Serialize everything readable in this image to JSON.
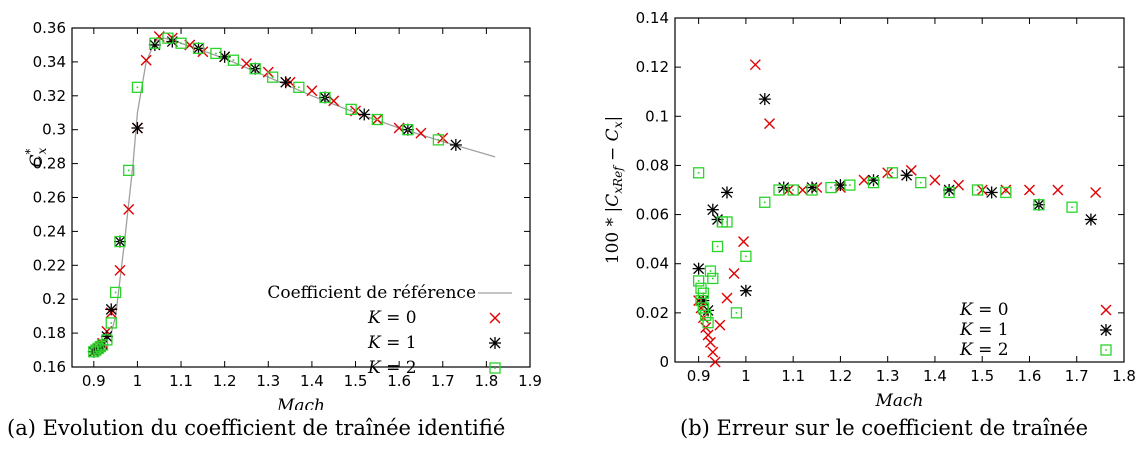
{
  "chart_data": [
    {
      "type": "scatter",
      "caption": "(a) Evolution du coefficient de traînée identifié",
      "xlabel": "Mach",
      "ylabel": "C*x",
      "xlim": [
        0.85,
        1.9
      ],
      "ylim": [
        0.16,
        0.36
      ],
      "xticks": [
        "0.9",
        "1",
        "1.1",
        "1.2",
        "1.3",
        "1.4",
        "1.5",
        "1.6",
        "1.7",
        "1.8",
        "1.9"
      ],
      "yticks": [
        "0.16",
        "0.18",
        "0.2",
        "0.22",
        "0.24",
        "0.26",
        "0.28",
        "0.3",
        "0.32",
        "0.34",
        "0.36"
      ],
      "legend_position": "bottom-right",
      "grid": false,
      "reference_line": {
        "name": "Coefficient de référence",
        "color": "#a0a0a0",
        "x": [
          0.9,
          0.92,
          0.94,
          0.95,
          0.97,
          0.99,
          1.0,
          1.02,
          1.04,
          1.06,
          1.08,
          1.1,
          1.2,
          1.3,
          1.4,
          1.5,
          1.6,
          1.7,
          1.82
        ],
        "y": [
          0.168,
          0.172,
          0.18,
          0.19,
          0.233,
          0.28,
          0.31,
          0.34,
          0.352,
          0.354,
          0.353,
          0.351,
          0.342,
          0.331,
          0.32,
          0.31,
          0.301,
          0.293,
          0.284
        ]
      },
      "series": [
        {
          "name": "K = 0",
          "marker": "x",
          "color": "#e00000",
          "x": [
            0.9,
            0.905,
            0.91,
            0.915,
            0.92,
            0.93,
            0.94,
            0.96,
            0.98,
            1.0,
            1.02,
            1.05,
            1.08,
            1.12,
            1.15,
            1.2,
            1.25,
            1.3,
            1.35,
            1.4,
            1.45,
            1.5,
            1.55,
            1.6,
            1.65,
            1.7
          ],
          "y": [
            0.169,
            0.17,
            0.171,
            0.172,
            0.174,
            0.181,
            0.192,
            0.217,
            0.253,
            0.301,
            0.341,
            0.355,
            0.354,
            0.35,
            0.346,
            0.343,
            0.339,
            0.334,
            0.328,
            0.323,
            0.317,
            0.311,
            0.306,
            0.301,
            0.298,
            0.295
          ]
        },
        {
          "name": "K = 1",
          "marker": "asterisk",
          "color": "#000000",
          "x": [
            0.9,
            0.91,
            0.92,
            0.93,
            0.94,
            0.96,
            1.0,
            1.04,
            1.08,
            1.14,
            1.2,
            1.27,
            1.34,
            1.43,
            1.52,
            1.62,
            1.73
          ],
          "y": [
            0.169,
            0.171,
            0.173,
            0.178,
            0.194,
            0.234,
            0.301,
            0.35,
            0.352,
            0.348,
            0.343,
            0.336,
            0.328,
            0.319,
            0.309,
            0.3,
            0.291
          ]
        },
        {
          "name": "K = 2",
          "marker": "square",
          "color": "#2ad42a",
          "x": [
            0.9,
            0.905,
            0.91,
            0.915,
            0.92,
            0.93,
            0.94,
            0.95,
            0.96,
            0.98,
            1.0,
            1.04,
            1.07,
            1.1,
            1.14,
            1.18,
            1.22,
            1.27,
            1.31,
            1.37,
            1.43,
            1.49,
            1.55,
            1.62,
            1.69
          ],
          "y": [
            0.169,
            0.17,
            0.171,
            0.172,
            0.173,
            0.176,
            0.186,
            0.204,
            0.234,
            0.276,
            0.325,
            0.351,
            0.354,
            0.351,
            0.348,
            0.345,
            0.341,
            0.336,
            0.331,
            0.325,
            0.319,
            0.312,
            0.306,
            0.3,
            0.294
          ]
        }
      ]
    },
    {
      "type": "scatter",
      "caption": "(b) Erreur sur le coefficient de traînée",
      "xlabel": "Mach",
      "ylabel": "100 * |C_xRef − C_x|",
      "xlim": [
        0.85,
        1.8
      ],
      "ylim": [
        0,
        0.14
      ],
      "xticks": [
        "0.9",
        "1",
        "1.1",
        "1.2",
        "1.3",
        "1.4",
        "1.5",
        "1.6",
        "1.7",
        "1.8"
      ],
      "yticks": [
        "0",
        "0.02",
        "0.04",
        "0.06",
        "0.08",
        "0.1",
        "0.12",
        "0.14"
      ],
      "legend_position": "bottom-right",
      "grid": false,
      "series": [
        {
          "name": "K = 0",
          "marker": "x",
          "color": "#e00000",
          "x": [
            0.9,
            0.905,
            0.91,
            0.915,
            0.92,
            0.925,
            0.93,
            0.935,
            0.945,
            0.96,
            0.975,
            0.995,
            1.02,
            1.05,
            1.09,
            1.12,
            1.15,
            1.2,
            1.25,
            1.3,
            1.35,
            1.4,
            1.45,
            1.5,
            1.55,
            1.6,
            1.66,
            1.74
          ],
          "y": [
            0.025,
            0.022,
            0.018,
            0.014,
            0.011,
            0.008,
            0.004,
            0.0,
            0.015,
            0.026,
            0.036,
            0.049,
            0.121,
            0.097,
            0.07,
            0.07,
            0.071,
            0.071,
            0.074,
            0.077,
            0.078,
            0.074,
            0.072,
            0.07,
            0.07,
            0.07,
            0.07,
            0.069
          ]
        },
        {
          "name": "K = 1",
          "marker": "asterisk",
          "color": "#000000",
          "x": [
            0.9,
            0.91,
            0.92,
            0.93,
            0.94,
            0.96,
            1.0,
            1.04,
            1.08,
            1.14,
            1.2,
            1.27,
            1.34,
            1.43,
            1.52,
            1.62,
            1.73
          ],
          "y": [
            0.038,
            0.025,
            0.021,
            0.062,
            0.058,
            0.069,
            0.029,
            0.107,
            0.071,
            0.071,
            0.072,
            0.074,
            0.076,
            0.07,
            0.069,
            0.064,
            0.058
          ]
        },
        {
          "name": "K = 2",
          "marker": "square",
          "color": "#2ad42a",
          "x": [
            0.9,
            0.9,
            0.905,
            0.905,
            0.91,
            0.91,
            0.915,
            0.92,
            0.925,
            0.93,
            0.94,
            0.95,
            0.96,
            0.98,
            1.0,
            1.04,
            1.07,
            1.1,
            1.14,
            1.18,
            1.22,
            1.27,
            1.31,
            1.37,
            1.43,
            1.49,
            1.55,
            1.62,
            1.69
          ],
          "y": [
            0.077,
            0.033,
            0.03,
            0.025,
            0.028,
            0.022,
            0.019,
            0.016,
            0.037,
            0.034,
            0.047,
            0.057,
            0.057,
            0.02,
            0.043,
            0.065,
            0.07,
            0.07,
            0.07,
            0.071,
            0.072,
            0.073,
            0.077,
            0.073,
            0.069,
            0.07,
            0.069,
            0.064,
            0.063
          ]
        }
      ]
    }
  ]
}
